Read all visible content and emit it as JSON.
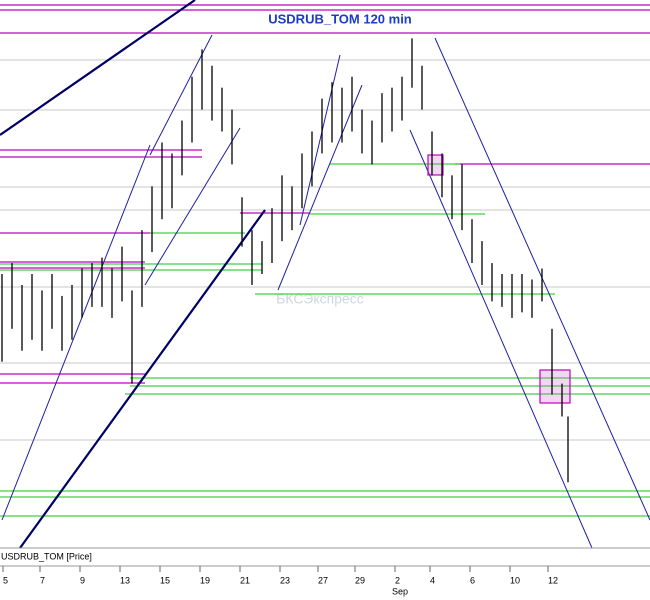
{
  "chart_data": {
    "type": "ohlc",
    "title": "USDRUB_TOM 120 min",
    "legend_label": "USDRUB_TOM [Price]",
    "watermark": "БКСЭкспресс",
    "month_label": "Sep",
    "x": [
      0,
      1,
      2,
      3,
      4,
      5,
      6,
      7,
      8,
      9,
      10,
      11,
      12,
      13,
      14,
      15,
      16,
      17,
      18,
      19,
      20,
      21,
      22,
      23,
      24,
      25,
      26,
      27,
      28,
      29,
      30,
      31,
      32,
      33,
      34,
      35,
      36,
      37,
      38,
      39,
      40,
      41,
      42,
      43,
      44,
      45,
      46,
      47,
      48,
      49,
      50,
      51,
      52,
      53,
      54,
      55,
      56,
      56.6
    ],
    "series": [
      {
        "name": "USDRUB_TOM",
        "color": "#000000",
        "high": [
          50,
          52,
          48,
          50,
          47,
          50,
          46,
          48,
          51,
          52,
          53,
          51,
          55,
          47,
          58,
          66,
          74,
          72,
          78,
          86,
          91,
          88,
          84,
          80,
          64,
          58,
          56,
          62,
          68,
          66,
          72,
          76,
          82,
          85,
          84,
          86,
          80,
          78,
          83,
          84,
          86,
          93,
          88,
          76,
          72,
          68,
          70,
          60,
          56,
          52,
          50,
          50,
          50,
          49,
          51,
          40,
          30,
          24
        ],
        "low": [
          34,
          40,
          36,
          38,
          36,
          40,
          36,
          38,
          42,
          44,
          44,
          42,
          45,
          30,
          44,
          54,
          60,
          62,
          68,
          74,
          80,
          78,
          76,
          70,
          55,
          48,
          50,
          52,
          56,
          58,
          62,
          66,
          72,
          74,
          74,
          76,
          72,
          70,
          74,
          76,
          78,
          84,
          80,
          68,
          64,
          60,
          58,
          52,
          48,
          45,
          44,
          42,
          43,
          42,
          45,
          28,
          24,
          12
        ]
      }
    ],
    "xlim": [
      -0.2,
      64.8
    ],
    "ylim": [
      0,
      100
    ],
    "xticks": [
      {
        "value": 0.1,
        "label": "5"
      },
      {
        "value": 3.8,
        "label": "7"
      },
      {
        "value": 7.8,
        "label": "9"
      },
      {
        "value": 11.8,
        "label": "13"
      },
      {
        "value": 15.8,
        "label": "15"
      },
      {
        "value": 19.8,
        "label": "19"
      },
      {
        "value": 23.8,
        "label": "21"
      },
      {
        "value": 27.8,
        "label": "23"
      },
      {
        "value": 31.6,
        "label": "27"
      },
      {
        "value": 35.3,
        "label": "29"
      },
      {
        "value": 39.3,
        "label": "2"
      },
      {
        "value": 42.8,
        "label": "4"
      },
      {
        "value": 46.8,
        "label": "6"
      },
      {
        "value": 50.8,
        "label": "10"
      },
      {
        "value": 54.6,
        "label": "12"
      }
    ]
  }
}
